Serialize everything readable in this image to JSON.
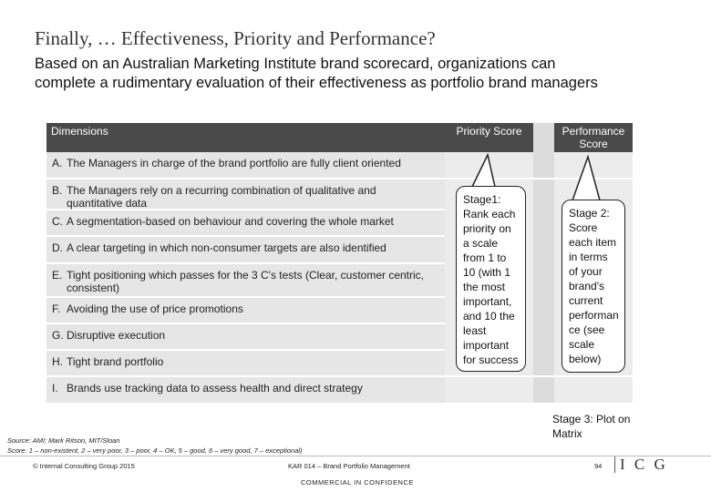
{
  "slide": {
    "title": "Finally, … Effectiveness, Priority and Performance?",
    "subtitle": "Based on an Australian Marketing Institute brand scorecard, organizations can complete a rudimentary evaluation of their effectiveness as portfolio brand managers"
  },
  "table": {
    "headers": {
      "dimensions": "Dimensions",
      "priority": "Priority Score",
      "performance": "Performance Score"
    },
    "rows": [
      {
        "letter": "A.",
        "text": "The Managers in charge of the brand portfolio are fully client oriented"
      },
      {
        "letter": "B.",
        "text": "The Managers rely on a recurring combination of qualitative and quantitative data"
      },
      {
        "letter": "C.",
        "text": "A segmentation-based on behaviour and covering the whole market"
      },
      {
        "letter": "D.",
        "text": "A clear targeting in which non-consumer targets are also identified"
      },
      {
        "letter": "E.",
        "text": "Tight positioning which passes for the 3 C's tests (Clear, customer centric, consistent)"
      },
      {
        "letter": "F.",
        "text": "Avoiding the use of price promotions"
      },
      {
        "letter": "G.",
        "text": "Disruptive execution"
      },
      {
        "letter": "H.",
        "text": "Tight brand portfolio"
      },
      {
        "letter": "I.",
        "text": "Brands use tracking data to assess health and direct strategy"
      }
    ]
  },
  "callouts": {
    "stage1": "Stage1: Rank each priority on a scale from 1 to 10 (with 1 the most important, and 10 the least important for success",
    "stage2": "Stage 2: Score each item in terms of your brand's current performan ce (see scale below)",
    "stage3": "Stage 3: Plot on Matrix"
  },
  "notes": {
    "source": "Source: AMI; Mark Ritson, MIT/Sloan",
    "score": "Score: 1 – non-existent, 2 – very poor, 3 – poor, 4 – OK, 5 – good, 6 – very good, 7 – exceptional)"
  },
  "footer": {
    "copyright": "© Internal Consulting Group 2015",
    "course": "KAR 014 – Brand Portfolio Management",
    "page": "94",
    "logo": "I C G",
    "confidential": "COMMERCIAL IN CONFIDENCE"
  }
}
